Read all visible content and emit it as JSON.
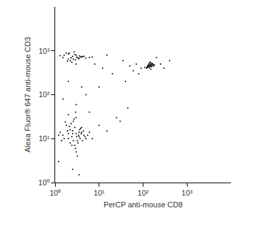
{
  "chart_data": {
    "type": "scatter",
    "x_label": "PerCP anti-mouse CD8",
    "y_label": "Alexa Fluor® 647 anti-mouse CD3",
    "log": true,
    "grid": false,
    "color": "#000000",
    "marker": "dot",
    "xlim": [
      1,
      10000
    ],
    "ylim": [
      1,
      10000
    ],
    "xticks": [
      {
        "value": 1,
        "label": "10⁰"
      },
      {
        "value": 10,
        "label": "10¹"
      },
      {
        "value": 100,
        "label": "10²"
      },
      {
        "value": 1000,
        "label": "10³"
      }
    ],
    "yticks": [
      {
        "value": 1,
        "label": "10⁰"
      },
      {
        "value": 10,
        "label": "10¹"
      },
      {
        "value": 100,
        "label": "10²"
      },
      {
        "value": 1000,
        "label": "10³"
      }
    ],
    "x": [
      1.5,
      2,
      2.5,
      3,
      3.5,
      4,
      2.2,
      2.8,
      3.2,
      4.5,
      1.8,
      2.4,
      3.6,
      5,
      2.6,
      3.1,
      1.3,
      2,
      2.9,
      3.8,
      4.2,
      1.6,
      2.3,
      3.4,
      6,
      2.7,
      3,
      1.9,
      4.8,
      2.1,
      3.3,
      2.5,
      1.4,
      3.7,
      5.5,
      2.2,
      2.8,
      4,
      1.7,
      3.5,
      2.4,
      3,
      7,
      1.2,
      2.6,
      3.9,
      4.4,
      2,
      2.9,
      3.2,
      1.5,
      2,
      2.5,
      3,
      3.5,
      4,
      2.2,
      2.8,
      3.2,
      4.5,
      1.8,
      2.4,
      3.6,
      5,
      2.6,
      3.1,
      1.3,
      2,
      2.9,
      3.8,
      6,
      1.6,
      2.3,
      3.4,
      2.7,
      4.2,
      1.9,
      3,
      7,
      2.1,
      140,
      150,
      130,
      160,
      145,
      120,
      155,
      135,
      170,
      125,
      148,
      142,
      138,
      165,
      128,
      152,
      110,
      180,
      146,
      132,
      158,
      144,
      136,
      150,
      140,
      175,
      122,
      162,
      134,
      148,
      8,
      12,
      20,
      35,
      50,
      70,
      10,
      15,
      25,
      40,
      60,
      90,
      5,
      3,
      2,
      4,
      6,
      1.5,
      10,
      30,
      80,
      200,
      250,
      300,
      400,
      15,
      2.5,
      3.5,
      1.2,
      45
    ],
    "y": [
      12,
      10,
      15,
      13,
      11,
      14,
      8,
      18,
      9,
      12,
      20,
      7,
      16,
      10,
      25,
      11,
      14,
      13,
      6,
      17,
      9,
      10,
      22,
      12,
      14,
      28,
      5,
      15,
      11,
      19,
      8,
      13,
      9,
      10,
      12,
      16,
      7,
      18,
      24,
      14,
      11,
      30,
      10,
      12,
      9,
      13,
      15,
      35,
      40,
      4,
      700,
      650,
      750,
      800,
      680,
      720,
      600,
      820,
      700,
      750,
      900,
      550,
      760,
      680,
      640,
      710,
      780,
      850,
      620,
      730,
      700,
      800,
      690,
      660,
      950,
      740,
      580,
      500,
      720,
      880,
      450,
      480,
      420,
      500,
      460,
      400,
      520,
      440,
      470,
      430,
      490,
      410,
      455,
      510,
      465,
      445,
      420,
      480,
      550,
      470,
      435,
      460,
      500,
      380,
      525,
      450,
      415,
      475,
      440,
      460,
      500,
      400,
      300,
      600,
      450,
      500,
      20,
      15,
      30,
      200,
      350,
      400,
      100,
      60,
      200,
      150,
      40,
      80,
      150,
      25,
      300,
      700,
      500,
      400,
      600,
      800,
      2,
      1.5,
      3,
      50
    ]
  }
}
